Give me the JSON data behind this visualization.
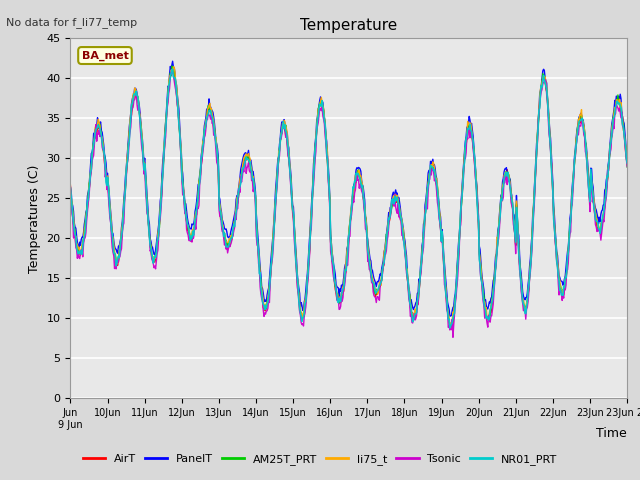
{
  "title": "Temperature",
  "xlabel": "Time",
  "ylabel": "Temperatures (C)",
  "no_data_text": "No data for f_li77_temp",
  "legend_label_text": "BA_met",
  "ylim": [
    0,
    45
  ],
  "series": {
    "AirT": {
      "color": "#ff0000",
      "lw": 1.0
    },
    "PanelT": {
      "color": "#0000ff",
      "lw": 1.0
    },
    "AM25T_PRT": {
      "color": "#00cc00",
      "lw": 1.0
    },
    "li75_t": {
      "color": "#ffaa00",
      "lw": 1.0
    },
    "Tsonic": {
      "color": "#cc00cc",
      "lw": 1.0
    },
    "NR01_PRT": {
      "color": "#00cccc",
      "lw": 1.2
    }
  },
  "peak_maxes": [
    34,
    38,
    41,
    36,
    30,
    34,
    37,
    28,
    25,
    29,
    34,
    28,
    40,
    35,
    37
  ],
  "peak_mins": [
    18,
    17,
    17,
    20,
    19,
    11,
    10,
    12,
    13,
    10,
    9,
    10,
    11,
    13,
    21
  ],
  "figsize": [
    6.4,
    4.8
  ],
  "dpi": 100,
  "plot_bg": "#e8e8e8",
  "fig_bg": "#d9d9d9",
  "grid_color": "#ffffff"
}
